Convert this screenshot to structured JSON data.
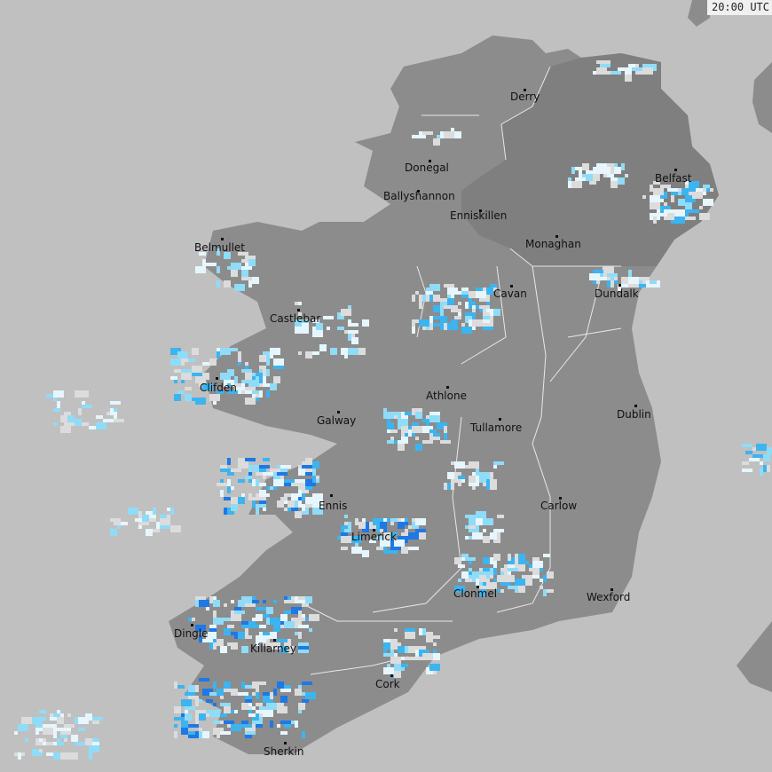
{
  "timestamp": "20:00 UTC",
  "colors": {
    "sea": "#c0c0c0",
    "land": "#8c8c8c",
    "northern_ireland": "#7f7f7f",
    "borders": "#ffffff",
    "rain_light": "#e6f6fc",
    "rain_moderate": "#8fdcf8",
    "rain_heavy": "#3cb4f0",
    "rain_very_heavy": "#1e78e6"
  },
  "cities": [
    {
      "name": "Derry"
    },
    {
      "name": "Donegal"
    },
    {
      "name": "Ballyshannon"
    },
    {
      "name": "Enniskillen"
    },
    {
      "name": "Monaghan"
    },
    {
      "name": "Belfast"
    },
    {
      "name": "Belmullet"
    },
    {
      "name": "Castlebar"
    },
    {
      "name": "Cavan"
    },
    {
      "name": "Dundalk"
    },
    {
      "name": "Clifden"
    },
    {
      "name": "Athlone"
    },
    {
      "name": "Galway"
    },
    {
      "name": "Tullamore"
    },
    {
      "name": "Dublin"
    },
    {
      "name": "Ennis"
    },
    {
      "name": "Carlow"
    },
    {
      "name": "Limerick"
    },
    {
      "name": "Clonmel"
    },
    {
      "name": "Wexford"
    },
    {
      "name": "Dingle"
    },
    {
      "name": "Killarney"
    },
    {
      "name": "Cork"
    },
    {
      "name": "Sherkin"
    }
  ]
}
